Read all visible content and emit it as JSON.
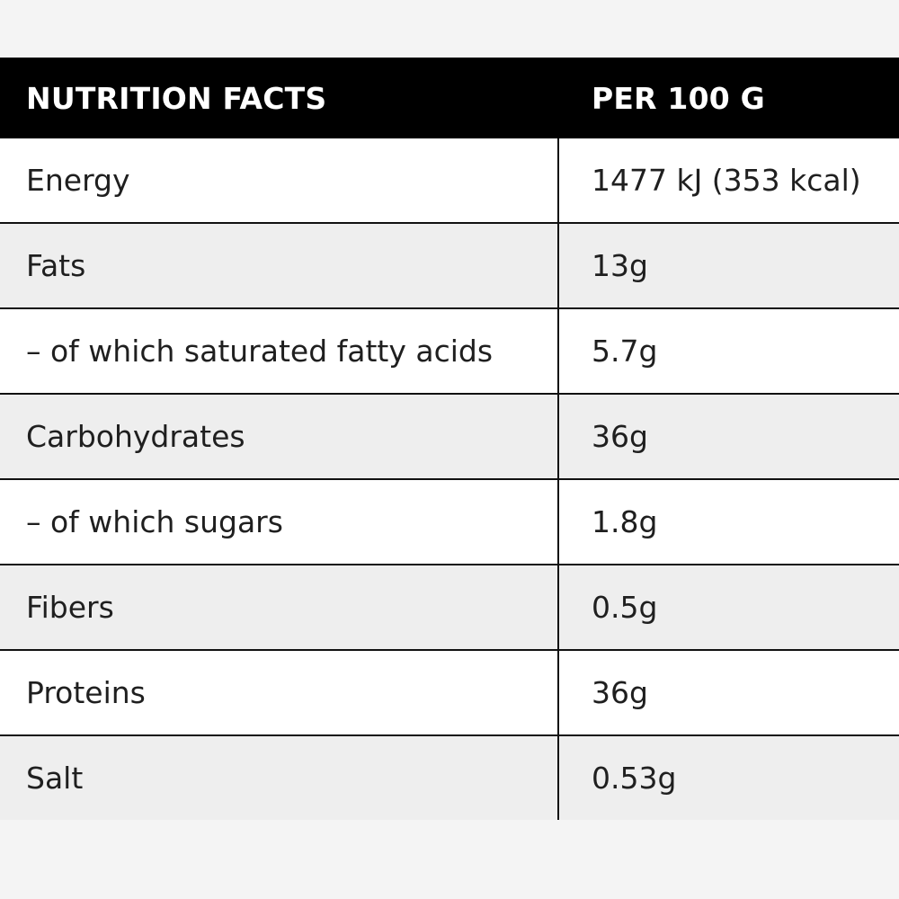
{
  "table": {
    "header": {
      "label": "NUTRITION FACTS",
      "unit": "PER 100 G"
    },
    "rows": [
      {
        "name": "Energy",
        "value": "1477 kJ (353 kcal)"
      },
      {
        "name": "Fats",
        "value": "13g"
      },
      {
        "name": "– of which saturated fatty acids",
        "value": "5.7g"
      },
      {
        "name": "Carbohydrates",
        "value": "36g"
      },
      {
        "name": "– of which sugars",
        "value": "1.8g"
      },
      {
        "name": "Fibers",
        "value": "0.5g"
      },
      {
        "name": "Proteins",
        "value": "36g"
      },
      {
        "name": "Salt",
        "value": "0.53g"
      }
    ]
  },
  "colors": {
    "header_bg": "#000000",
    "header_text": "#ffffff",
    "row_white": "#ffffff",
    "row_grey": "#eeeeee",
    "page_bg": "#f4f4f4"
  }
}
